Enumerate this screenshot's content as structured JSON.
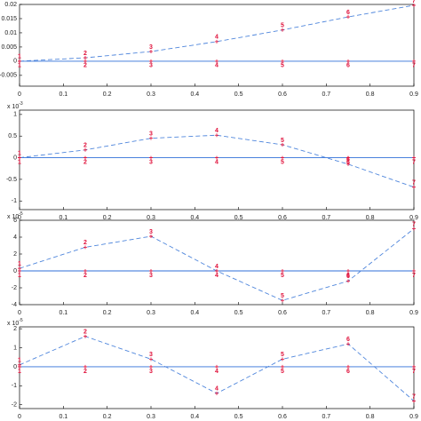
{
  "chart_data": [
    {
      "type": "line",
      "x": [
        0,
        0.15,
        0.3,
        0.45,
        0.6,
        0.75,
        0.9
      ],
      "node_labels": [
        "1",
        "2",
        "3",
        "4",
        "5",
        "6",
        "7"
      ],
      "series": [
        {
          "color": "#2f6fd8",
          "dash": false,
          "values": [
            0,
            0,
            0,
            0,
            0,
            0,
            0
          ]
        },
        {
          "color": "#4f86dc",
          "dash": true,
          "values": [
            0,
            0.0012,
            0.0034,
            0.0069,
            0.011,
            0.0156,
            0.0197
          ]
        }
      ],
      "xlim": [
        0,
        0.9
      ],
      "xticks": [
        0,
        0.1,
        0.2,
        0.3,
        0.4,
        0.5,
        0.6,
        0.7,
        0.8,
        0.9
      ],
      "ylim": [
        -0.0088,
        0.02
      ],
      "yticks": [
        0.02,
        0.015,
        0.01,
        0.005,
        0,
        -0.005
      ]
    },
    {
      "type": "line",
      "x": [
        0,
        0.15,
        0.3,
        0.45,
        0.6,
        0.75,
        0.9
      ],
      "node_labels": [
        "1",
        "2",
        "3",
        "4",
        "5",
        "6",
        "7"
      ],
      "y_exponent": {
        "base": "x 10",
        "power": "-3"
      },
      "series": [
        {
          "color": "#2f6fd8",
          "dash": false,
          "values": [
            0,
            0,
            0,
            0,
            0,
            0,
            0
          ]
        },
        {
          "color": "#4f86dc",
          "dash": true,
          "values": [
            0,
            0.18,
            0.45,
            0.52,
            0.3,
            -0.15,
            -0.68
          ]
        }
      ],
      "xlim": [
        0,
        0.9
      ],
      "xticks": [
        0,
        0.1,
        0.2,
        0.3,
        0.4,
        0.5,
        0.6,
        0.7,
        0.8,
        0.9
      ],
      "ylim": [
        -1.2,
        1.1
      ],
      "yticks": [
        1,
        0.5,
        0,
        -0.5,
        -1
      ]
    },
    {
      "type": "line",
      "x": [
        0,
        0.15,
        0.3,
        0.45,
        0.6,
        0.75,
        0.9
      ],
      "node_labels": [
        "1",
        "2",
        "3",
        "4",
        "5",
        "6",
        "7"
      ],
      "y_exponent": {
        "base": "x 10",
        "power": "-5"
      },
      "series": [
        {
          "color": "#2f6fd8",
          "dash": false,
          "values": [
            0,
            0,
            0,
            0,
            0,
            0,
            0
          ]
        },
        {
          "color": "#4f86dc",
          "dash": true,
          "values": [
            0.3,
            2.8,
            4.1,
            0,
            -3.5,
            -1.2,
            5
          ]
        }
      ],
      "xlim": [
        0,
        0.9
      ],
      "xticks": [
        0,
        0.1,
        0.2,
        0.3,
        0.4,
        0.5,
        0.6,
        0.7,
        0.8,
        0.9
      ],
      "ylim": [
        -4,
        6
      ],
      "yticks": [
        6,
        4,
        2,
        0,
        -2,
        -4
      ]
    },
    {
      "type": "line",
      "x": [
        0,
        0.15,
        0.3,
        0.45,
        0.6,
        0.75,
        0.9
      ],
      "node_labels": [
        "1",
        "2",
        "3",
        "4",
        "5",
        "6",
        "7"
      ],
      "y_exponent": {
        "base": "x 10",
        "power": "-5"
      },
      "series": [
        {
          "color": "#2f6fd8",
          "dash": false,
          "values": [
            0,
            0,
            0,
            0,
            0,
            0,
            0
          ]
        },
        {
          "color": "#4f86dc",
          "dash": true,
          "values": [
            0.1,
            1.6,
            0.4,
            -1.4,
            0.4,
            1.2,
            -1.8
          ]
        }
      ],
      "xlim": [
        0,
        0.9
      ],
      "xticks": [
        0,
        0.1,
        0.2,
        0.3,
        0.4,
        0.5,
        0.6,
        0.7,
        0.8,
        0.9
      ],
      "ylim": [
        -2.2,
        2.1
      ],
      "yticks": [
        2,
        1,
        0,
        -1,
        -2
      ]
    }
  ]
}
